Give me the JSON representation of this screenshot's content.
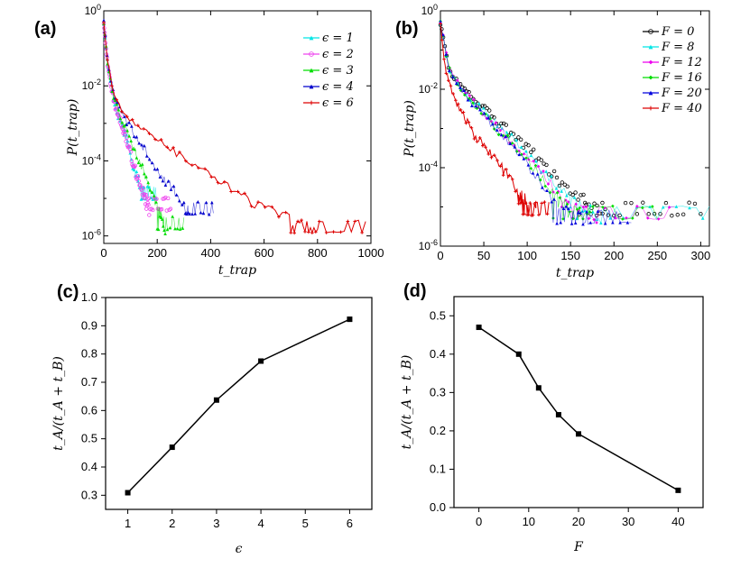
{
  "chart_data": [
    {
      "panel": "(a)",
      "type": "scatter",
      "xlabel": "t_trap",
      "ylabel": "P(t_trap)",
      "xscale": "linear",
      "yscale": "log",
      "xlim": [
        0,
        1000
      ],
      "ylim_exp": [
        -6.2,
        0
      ],
      "xticks": [
        "0",
        "200",
        "400",
        "600",
        "800",
        "1000"
      ],
      "yticks": [
        {
          "base": "10",
          "exp": "0",
          "value": 1
        },
        {
          "base": "10",
          "exp": "-2",
          "value": 0.01
        },
        {
          "base": "10",
          "exp": "-4",
          "value": 0.0001
        },
        {
          "base": "10",
          "exp": "-6",
          "value": 1e-06
        }
      ],
      "legend_loc": "top-right",
      "series": [
        {
          "name": "ϵ = 1",
          "color": "#00e5e5",
          "marker": "triangle",
          "x": [
            0,
            15,
            40,
            80,
            110,
            150
          ],
          "log10y": [
            -0.3,
            -1.5,
            -2.5,
            -3.3,
            -4.1,
            -5.0
          ],
          "floor_x": [
            130,
            200
          ],
          "floor": -5.0
        },
        {
          "name": "ϵ = 2",
          "color": "#ee44ee",
          "marker": "circle",
          "x": [
            0,
            15,
            40,
            80,
            120,
            170
          ],
          "log10y": [
            -0.3,
            -1.5,
            -2.5,
            -3.3,
            -4.3,
            -5.3
          ],
          "floor_x": [
            150,
            250
          ],
          "floor": -5.3
        },
        {
          "name": "ϵ = 3",
          "color": "#00dd00",
          "marker": "triangle",
          "x": [
            0,
            15,
            40,
            80,
            150,
            230
          ],
          "log10y": [
            -0.3,
            -1.5,
            -2.4,
            -3.1,
            -4.3,
            -5.8
          ],
          "floor_x": [
            200,
            300
          ],
          "floor": -5.8
        },
        {
          "name": "ϵ = 4",
          "color": "#0000cc",
          "marker": "triangle",
          "x": [
            0,
            15,
            40,
            80,
            200,
            320
          ],
          "log10y": [
            -0.3,
            -1.4,
            -2.3,
            -2.9,
            -4.2,
            -5.4
          ],
          "floor_x": [
            300,
            410
          ],
          "floor": -5.4
        },
        {
          "name": "ϵ = 6",
          "color": "#dd0000",
          "marker": "star",
          "x": [
            0,
            15,
            40,
            80,
            250,
            550,
            800
          ],
          "log10y": [
            -0.3,
            -1.4,
            -2.3,
            -2.8,
            -3.7,
            -5.1,
            -5.9
          ],
          "floor_x": [
            700,
            980
          ],
          "floor": -5.9
        }
      ]
    },
    {
      "panel": "(b)",
      "type": "scatter",
      "xlabel": "t_trap",
      "ylabel": "P(t_trap)",
      "xscale": "linear",
      "yscale": "log",
      "xlim": [
        0,
        310
      ],
      "ylim_exp": [
        -6,
        0
      ],
      "xticks": [
        "0",
        "50",
        "100",
        "150",
        "200",
        "250",
        "300"
      ],
      "yticks": [
        {
          "base": "10",
          "exp": "0",
          "value": 1
        },
        {
          "base": "10",
          "exp": "-2",
          "value": 0.01
        },
        {
          "base": "10",
          "exp": "-4",
          "value": 0.0001
        },
        {
          "base": "10",
          "exp": "-6",
          "value": 1e-06
        }
      ],
      "legend_loc": "top-right",
      "series": [
        {
          "name": "F = 0",
          "color": "#000000",
          "marker": "circle",
          "x": [
            0,
            10,
            25,
            60,
            100,
            150,
            190
          ],
          "log10y": [
            -0.3,
            -1.5,
            -2.0,
            -2.7,
            -3.5,
            -4.6,
            -5.2
          ],
          "floor_x": [
            160,
            300
          ],
          "floor": -5.2
        },
        {
          "name": "F = 8",
          "color": "#00e5e5",
          "marker": "triangle",
          "x": [
            0,
            10,
            25,
            60,
            100,
            145,
            185
          ],
          "log10y": [
            -0.3,
            -1.5,
            -2.0,
            -2.8,
            -3.6,
            -4.7,
            -5.3
          ],
          "floor_x": [
            150,
            310
          ],
          "floor": -5.3
        },
        {
          "name": "F = 12",
          "color": "#ee00ee",
          "marker": "diamond",
          "x": [
            0,
            10,
            25,
            60,
            100,
            140,
            180
          ],
          "log10y": [
            -0.3,
            -1.5,
            -2.0,
            -2.85,
            -3.7,
            -4.8,
            -5.3
          ],
          "floor_x": [
            140,
            270
          ],
          "floor": -5.3
        },
        {
          "name": "F = 16",
          "color": "#00dd00",
          "marker": "diamond",
          "x": [
            0,
            10,
            25,
            60,
            100,
            140,
            175
          ],
          "log10y": [
            -0.3,
            -1.5,
            -2.05,
            -2.9,
            -3.8,
            -4.9,
            -5.3
          ],
          "floor_x": [
            130,
            250
          ],
          "floor": -5.3
        },
        {
          "name": "F = 20",
          "color": "#0000dd",
          "marker": "triangle",
          "x": [
            0,
            10,
            25,
            60,
            100,
            135,
            170
          ],
          "log10y": [
            -0.3,
            -1.5,
            -2.05,
            -2.95,
            -3.9,
            -5.0,
            -5.4
          ],
          "floor_x": [
            130,
            220
          ],
          "floor": -5.4
        },
        {
          "name": "F = 40",
          "color": "#dd0000",
          "marker": "star",
          "x": [
            0,
            5,
            15,
            40,
            70,
            110
          ],
          "log10y": [
            -0.3,
            -1.4,
            -2.2,
            -3.2,
            -4.0,
            -5.2
          ],
          "floor_x": [
            90,
            125
          ],
          "floor": -5.2
        }
      ]
    },
    {
      "panel": "(c)",
      "type": "line",
      "xlabel": "ϵ",
      "ylabel": "t_A/(t_A + t_B)",
      "xlim": [
        0.5,
        6.5
      ],
      "ylim": [
        0.25,
        1.0
      ],
      "xticks": [
        {
          "label": "1",
          "pos": 1
        },
        {
          "label": "2",
          "pos": 2
        },
        {
          "label": "3",
          "pos": 3
        },
        {
          "label": "4",
          "pos": 4
        },
        {
          "label": "5",
          "pos": 5
        },
        {
          "label": "6",
          "pos": 6
        }
      ],
      "yticks": [
        "0.3",
        "0.4",
        "0.5",
        "0.6",
        "0.7",
        "0.8",
        "0.9",
        "1.0"
      ],
      "x": [
        1,
        2,
        3,
        4,
        6
      ],
      "y": [
        0.309,
        0.47,
        0.637,
        0.775,
        0.923
      ]
    },
    {
      "panel": "(d)",
      "type": "line",
      "xlabel": "F",
      "ylabel": "t_A/(t_A + t_B)",
      "xlim": [
        -5,
        45
      ],
      "ylim": [
        0.0,
        0.55
      ],
      "xticks": [
        "0",
        "10",
        "20",
        "30",
        "40"
      ],
      "yticks": [
        "0.0",
        "0.1",
        "0.2",
        "0.3",
        "0.4",
        "0.5"
      ],
      "x": [
        0,
        8,
        12,
        16,
        20,
        40
      ],
      "y": [
        0.47,
        0.4,
        0.312,
        0.242,
        0.192,
        0.045
      ]
    }
  ]
}
